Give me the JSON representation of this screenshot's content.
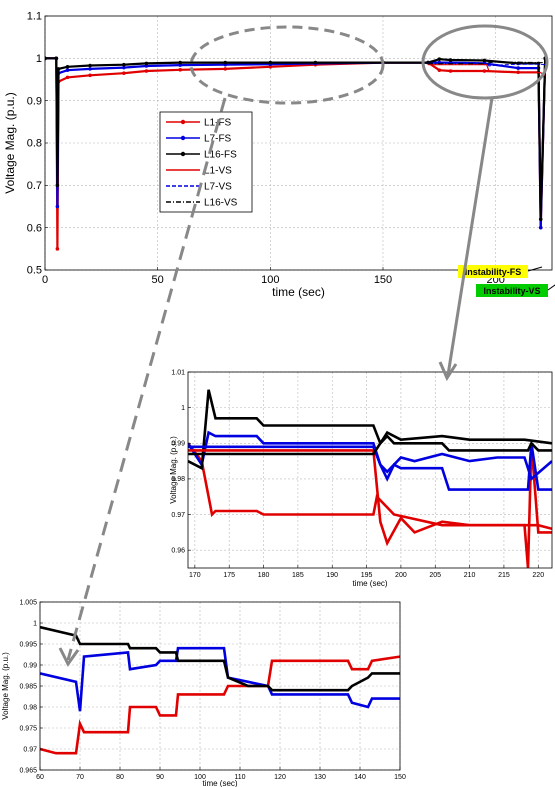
{
  "chart_data": [
    {
      "type": "line",
      "xlabel": "time (sec)",
      "ylabel": "Voltage Mag. (p.u.)",
      "xlim": [
        0,
        225
      ],
      "ylim": [
        0.5,
        1.1
      ],
      "xticks": [
        0,
        50,
        100,
        150,
        200
      ],
      "yticks": [
        0.5,
        0.6,
        0.7,
        0.8,
        0.9,
        1,
        1.1
      ],
      "xtick_labels": [
        "0",
        "50",
        "100",
        "150",
        "200"
      ],
      "ytick_labels": [
        "0.5",
        "0.6",
        "0.7",
        "0.8",
        "0.9",
        "1",
        "1.1"
      ],
      "grid": true,
      "legend_position": "center-left",
      "annotations": [
        {
          "text": "Instability-FS",
          "color": "#ffff00",
          "x": 220,
          "y": 0.545
        },
        {
          "text": "Instability-VS",
          "color": "#00cc00",
          "x": 222,
          "y": 0.51
        }
      ],
      "series": [
        {
          "name": "L1-FS",
          "color": "#e00000",
          "style": "solid-marker",
          "x": [
            0,
            5,
            5.5,
            6,
            10,
            20,
            35,
            45,
            60,
            80,
            100,
            120,
            150,
            170,
            175,
            180,
            195,
            210,
            219,
            220,
            222
          ],
          "y": [
            1.0,
            1.0,
            0.55,
            0.945,
            0.955,
            0.96,
            0.965,
            0.97,
            0.973,
            0.975,
            0.98,
            0.985,
            0.99,
            0.99,
            0.972,
            0.97,
            0.97,
            0.967,
            0.967,
            0.6,
            1.0
          ]
        },
        {
          "name": "L7-FS",
          "color": "#0000e0",
          "style": "solid-marker",
          "x": [
            0,
            5,
            5.5,
            6,
            10,
            20,
            35,
            45,
            60,
            80,
            100,
            120,
            150,
            170,
            175,
            180,
            195,
            210,
            219,
            220,
            222
          ],
          "y": [
            1.0,
            1.0,
            0.65,
            0.965,
            0.972,
            0.975,
            0.978,
            0.982,
            0.984,
            0.985,
            0.986,
            0.988,
            0.99,
            0.99,
            0.99,
            0.99,
            0.988,
            0.977,
            0.977,
            0.6,
            1.0
          ]
        },
        {
          "name": "L16-FS",
          "color": "#000000",
          "style": "solid-marker",
          "x": [
            0,
            5,
            5.5,
            6,
            10,
            20,
            35,
            45,
            60,
            80,
            100,
            120,
            150,
            170,
            175,
            180,
            195,
            210,
            219,
            220,
            222
          ],
          "y": [
            1.0,
            1.0,
            0.7,
            0.975,
            0.98,
            0.983,
            0.985,
            0.988,
            0.99,
            0.99,
            0.99,
            0.99,
            0.99,
            0.99,
            0.998,
            0.996,
            0.995,
            0.988,
            0.988,
            0.62,
            1.0
          ]
        },
        {
          "name": "L1-VS",
          "color": "#e00000",
          "style": "solid",
          "x": [
            170,
            196,
            197,
            200,
            210,
            220,
            222
          ],
          "y": [
            0.985,
            0.985,
            0.97,
            0.968,
            0.966,
            0.966,
            0.96
          ]
        },
        {
          "name": "L7-VS",
          "color": "#0000e0",
          "style": "dashed",
          "x": [
            170,
            196,
            197,
            200,
            210,
            220,
            222
          ],
          "y": [
            0.988,
            0.988,
            0.982,
            0.984,
            0.986,
            0.986,
            0.985
          ]
        },
        {
          "name": "L16-VS",
          "color": "#000000",
          "style": "dashdot",
          "x": [
            170,
            196,
            197,
            200,
            210,
            220,
            222
          ],
          "y": [
            0.987,
            0.987,
            0.99,
            0.991,
            0.991,
            0.99,
            0.99
          ]
        }
      ]
    },
    {
      "type": "line",
      "xlabel": "time (sec)",
      "ylabel": "Voltage Mag. (p.u.)",
      "xlim": [
        169,
        222
      ],
      "ylim": [
        0.955,
        1.01
      ],
      "xticks": [
        170,
        175,
        180,
        185,
        190,
        195,
        200,
        205,
        210,
        215,
        220
      ],
      "yticks": [
        0.96,
        0.97,
        0.98,
        0.99,
        1,
        1.01
      ],
      "xtick_labels": [
        "170",
        "175",
        "180",
        "185",
        "190",
        "195",
        "200",
        "205",
        "210",
        "215",
        "220"
      ],
      "ytick_labels": [
        "0.96",
        "0.97",
        "0.98",
        "0.99",
        "1",
        "1.01"
      ],
      "grid": true,
      "series": [
        {
          "name": "L1-FS",
          "color": "#e00000",
          "x": [
            169,
            171,
            172,
            172.5,
            173,
            179,
            180,
            196,
            196.5,
            198,
            199,
            206,
            207,
            218,
            218.5,
            219,
            220,
            222
          ],
          "y": [
            0.99,
            0.985,
            0.975,
            0.97,
            0.971,
            0.971,
            0.97,
            0.97,
            0.975,
            0.972,
            0.97,
            0.967,
            0.967,
            0.967,
            0.955,
            0.99,
            0.965,
            0.965
          ]
        },
        {
          "name": "L7-FS",
          "color": "#0000e0",
          "x": [
            169,
            171,
            172,
            173,
            179,
            180,
            196,
            197,
            198,
            199,
            200,
            206,
            207,
            216,
            218.5,
            219,
            220,
            222
          ],
          "y": [
            0.99,
            0.984,
            0.993,
            0.992,
            0.992,
            0.99,
            0.99,
            0.984,
            0.98,
            0.984,
            0.983,
            0.983,
            0.977,
            0.977,
            0.977,
            0.99,
            0.977,
            0.977
          ]
        },
        {
          "name": "L16-FS",
          "color": "#000000",
          "x": [
            169,
            171,
            172,
            173,
            179,
            180,
            196,
            197,
            198,
            199,
            200,
            206,
            207,
            216,
            218.5,
            219,
            220,
            222
          ],
          "y": [
            0.985,
            0.983,
            1.005,
            0.997,
            0.997,
            0.995,
            0.995,
            0.99,
            0.992,
            0.99,
            0.99,
            0.99,
            0.988,
            0.988,
            0.988,
            0.99,
            0.988,
            0.988
          ]
        },
        {
          "name": "L1-VS",
          "color": "#e00000",
          "x": [
            169,
            196,
            197,
            198,
            200,
            202,
            206,
            210,
            214,
            218,
            220,
            222
          ],
          "y": [
            0.988,
            0.988,
            0.968,
            0.962,
            0.969,
            0.965,
            0.968,
            0.967,
            0.967,
            0.967,
            0.967,
            0.966
          ]
        },
        {
          "name": "L7-VS",
          "color": "#0000e0",
          "x": [
            169,
            196,
            197,
            198,
            200,
            202,
            206,
            210,
            214,
            218,
            219,
            222
          ],
          "y": [
            0.989,
            0.989,
            0.984,
            0.982,
            0.986,
            0.985,
            0.987,
            0.985,
            0.986,
            0.986,
            0.98,
            0.985
          ]
        },
        {
          "name": "L16-VS",
          "color": "#000000",
          "x": [
            169,
            196,
            197,
            198,
            200,
            206,
            210,
            214,
            218,
            222
          ],
          "y": [
            0.987,
            0.987,
            0.99,
            0.993,
            0.991,
            0.992,
            0.991,
            0.991,
            0.991,
            0.99
          ]
        }
      ]
    },
    {
      "type": "line",
      "xlabel": "time (sec)",
      "ylabel": "Voltage Mag. (p.u.)",
      "xlim": [
        60,
        150
      ],
      "ylim": [
        0.965,
        1.005
      ],
      "xticks": [
        60,
        70,
        80,
        90,
        100,
        110,
        120,
        130,
        140,
        150
      ],
      "yticks": [
        0.965,
        0.97,
        0.975,
        0.98,
        0.985,
        0.99,
        0.995,
        1,
        1.005
      ],
      "xtick_labels": [
        "60",
        "70",
        "80",
        "90",
        "100",
        "110",
        "120",
        "130",
        "140",
        "150"
      ],
      "ytick_labels": [
        "0.965",
        "0.97",
        "0.975",
        "0.98",
        "0.985",
        "0.99",
        "0.995",
        "1",
        "1.005"
      ],
      "grid": true,
      "series": [
        {
          "name": "L1-FS",
          "color": "#e00000",
          "x": [
            60,
            64,
            65,
            69,
            70,
            71,
            82,
            82.5,
            89,
            90,
            94,
            94.5,
            106,
            107,
            112,
            117,
            118,
            137,
            138,
            142,
            143,
            150
          ],
          "y": [
            0.97,
            0.969,
            0.969,
            0.969,
            0.976,
            0.974,
            0.974,
            0.98,
            0.98,
            0.978,
            0.978,
            0.983,
            0.983,
            0.985,
            0.985,
            0.985,
            0.991,
            0.991,
            0.989,
            0.989,
            0.991,
            0.992
          ]
        },
        {
          "name": "L7-FS",
          "color": "#0000e0",
          "x": [
            60,
            69,
            70,
            71,
            82,
            82.5,
            89,
            90,
            94,
            94.5,
            106,
            107,
            112,
            117,
            118,
            137,
            138,
            142,
            143,
            150
          ],
          "y": [
            0.988,
            0.986,
            0.979,
            0.992,
            0.993,
            0.989,
            0.99,
            0.991,
            0.991,
            0.994,
            0.994,
            0.987,
            0.986,
            0.985,
            0.983,
            0.983,
            0.981,
            0.98,
            0.982,
            0.982
          ]
        },
        {
          "name": "L16-FS",
          "color": "#000000",
          "x": [
            60,
            69,
            70,
            71,
            82,
            82.5,
            89,
            90,
            94,
            94.5,
            106,
            107,
            112,
            117,
            118,
            137,
            138,
            142,
            143,
            150
          ],
          "y": [
            0.999,
            0.997,
            0.995,
            0.995,
            0.995,
            0.994,
            0.994,
            0.993,
            0.993,
            0.991,
            0.991,
            0.987,
            0.985,
            0.985,
            0.984,
            0.984,
            0.985,
            0.987,
            0.988,
            0.988
          ]
        }
      ]
    }
  ]
}
